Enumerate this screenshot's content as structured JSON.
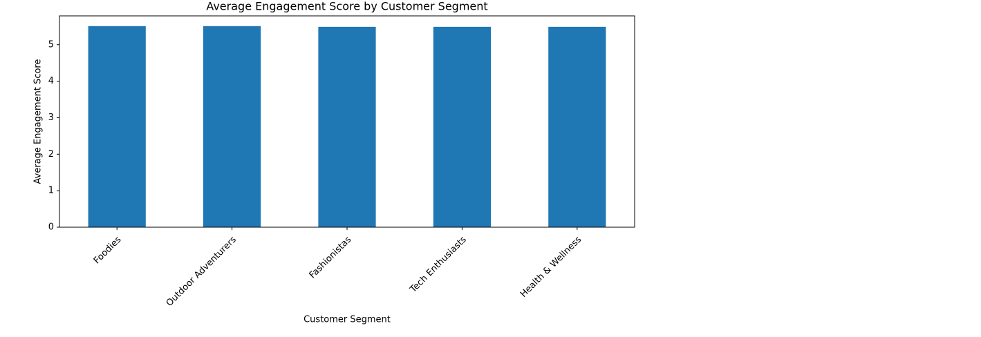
{
  "chart_data": {
    "type": "bar",
    "title": "Average Engagement Score by Customer Segment",
    "x_label": "Customer Segment",
    "y_label": "Average Engagement Score",
    "categories": [
      "Foodies",
      "Outdoor Adventurers",
      "Fashionistas",
      "Tech Enthusiasts",
      "Health & Wellness"
    ],
    "values": [
      5.51,
      5.51,
      5.49,
      5.49,
      5.49
    ],
    "color": "#1f77b4",
    "ylim": [
      0,
      5.79
    ],
    "yticks": [
      0,
      1,
      2,
      3,
      4,
      5
    ]
  }
}
